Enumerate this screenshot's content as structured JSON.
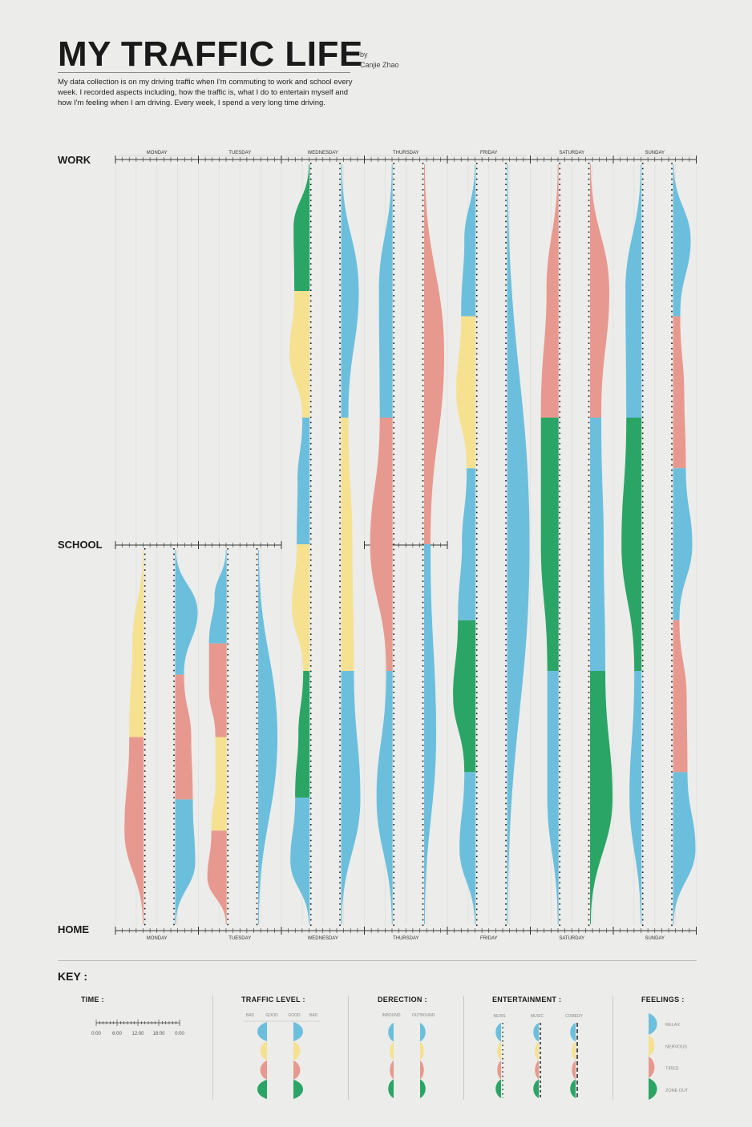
{
  "title": "MY TRAFFIC LIFE",
  "byline": {
    "by": "by",
    "author": "Canjie Zhao"
  },
  "description": "My data collection is on my driving traffic when I'm commuting to work and school every week. I recorded aspects including, how the traffic is, what I do to entertain myself and how I'm feeling when I am driving. Every week, I spend a very long time driving.",
  "locations": {
    "work": "WORK",
    "school": "SCHOOL",
    "home": "HOME"
  },
  "colors": {
    "relax": "#6bbfdd",
    "nervous": "#f5e190",
    "tired": "#e8998f",
    "zone_out": "#2aa566",
    "axis": "#333333"
  },
  "chart_data": {
    "type": "stream",
    "days": [
      "MONDAY",
      "TUESDAY",
      "WEDNESDAY",
      "THURSDAY",
      "FRIDAY",
      "SATURDAY",
      "SUNDAY"
    ],
    "feelings": [
      "RELAX",
      "NERVOUS",
      "TIRED",
      "ZONE OUT"
    ],
    "location_order": [
      "WORK",
      "SCHOOL",
      "HOME"
    ],
    "trips": [
      {
        "day": "MONDAY",
        "direction": "outbound",
        "from": "HOME",
        "to": "SCHOOL",
        "feelings": [
          "TIRED",
          "NERVOUS"
        ]
      },
      {
        "day": "MONDAY",
        "direction": "inbound",
        "from": "SCHOOL",
        "to": "HOME",
        "feelings": [
          "RELAX",
          "TIRED",
          "RELAX"
        ]
      },
      {
        "day": "TUESDAY",
        "direction": "outbound",
        "from": "HOME",
        "to": "SCHOOL",
        "feelings": [
          "TIRED",
          "NERVOUS",
          "TIRED",
          "RELAX"
        ]
      },
      {
        "day": "TUESDAY",
        "direction": "inbound",
        "from": "SCHOOL",
        "to": "HOME",
        "feelings": [
          "RELAX"
        ]
      },
      {
        "day": "WEDNESDAY",
        "direction": "outbound",
        "from": "HOME",
        "to": "WORK",
        "feelings": [
          "RELAX",
          "ZONE OUT",
          "NERVOUS",
          "RELAX",
          "NERVOUS",
          "ZONE OUT"
        ]
      },
      {
        "day": "WEDNESDAY",
        "direction": "inbound",
        "from": "WORK",
        "to": "HOME",
        "feelings": [
          "RELAX",
          "NERVOUS",
          "RELAX"
        ]
      },
      {
        "day": "THURSDAY",
        "direction": "outbound",
        "from": "HOME",
        "to": "WORK",
        "feelings": [
          "RELAX",
          "TIRED",
          "RELAX"
        ]
      },
      {
        "day": "THURSDAY",
        "direction": "inbound",
        "from": "WORK",
        "to": "HOME",
        "feelings": [
          "TIRED",
          "RELAX"
        ]
      },
      {
        "day": "FRIDAY",
        "direction": "outbound",
        "from": "HOME",
        "to": "WORK",
        "feelings": [
          "RELAX",
          "ZONE OUT",
          "RELAX",
          "NERVOUS",
          "RELAX"
        ]
      },
      {
        "day": "FRIDAY",
        "direction": "inbound",
        "from": "WORK",
        "to": "HOME",
        "feelings": [
          "RELAX"
        ]
      },
      {
        "day": "SATURDAY",
        "direction": "outbound",
        "from": "HOME",
        "to": "WORK",
        "feelings": [
          "RELAX",
          "ZONE OUT",
          "TIRED"
        ]
      },
      {
        "day": "SATURDAY",
        "direction": "inbound",
        "from": "WORK",
        "to": "HOME",
        "feelings": [
          "TIRED",
          "RELAX",
          "ZONE OUT"
        ]
      },
      {
        "day": "SUNDAY",
        "direction": "outbound",
        "from": "HOME",
        "to": "WORK",
        "feelings": [
          "RELAX",
          "ZONE OUT",
          "RELAX"
        ]
      },
      {
        "day": "SUNDAY",
        "direction": "inbound",
        "from": "WORK",
        "to": "HOME",
        "feelings": [
          "RELAX",
          "TIRED",
          "RELAX",
          "TIRED",
          "RELAX"
        ]
      }
    ]
  },
  "key": {
    "title": "KEY :",
    "time": {
      "label": "TIME :",
      "ticks": [
        "0:00",
        "6:00",
        "12:00",
        "18:00",
        "0:00"
      ]
    },
    "traffic": {
      "label": "TRAFFIC LEVEL :",
      "labels": [
        "BAD",
        "GOOD",
        "GOOD",
        "BAD"
      ]
    },
    "direction": {
      "label": "DERECTION :",
      "labels": [
        "INBOUND",
        "OUTBOUND"
      ]
    },
    "entertainment": {
      "label": "ENTERTAINMENT :",
      "labels": [
        "NEWS",
        "MUSIC",
        "COMEDY"
      ]
    },
    "feelings": {
      "label": "FEELINGS :",
      "labels": [
        "RELAX",
        "NERVOUS",
        "TIRED",
        "ZONE OUT"
      ]
    }
  }
}
